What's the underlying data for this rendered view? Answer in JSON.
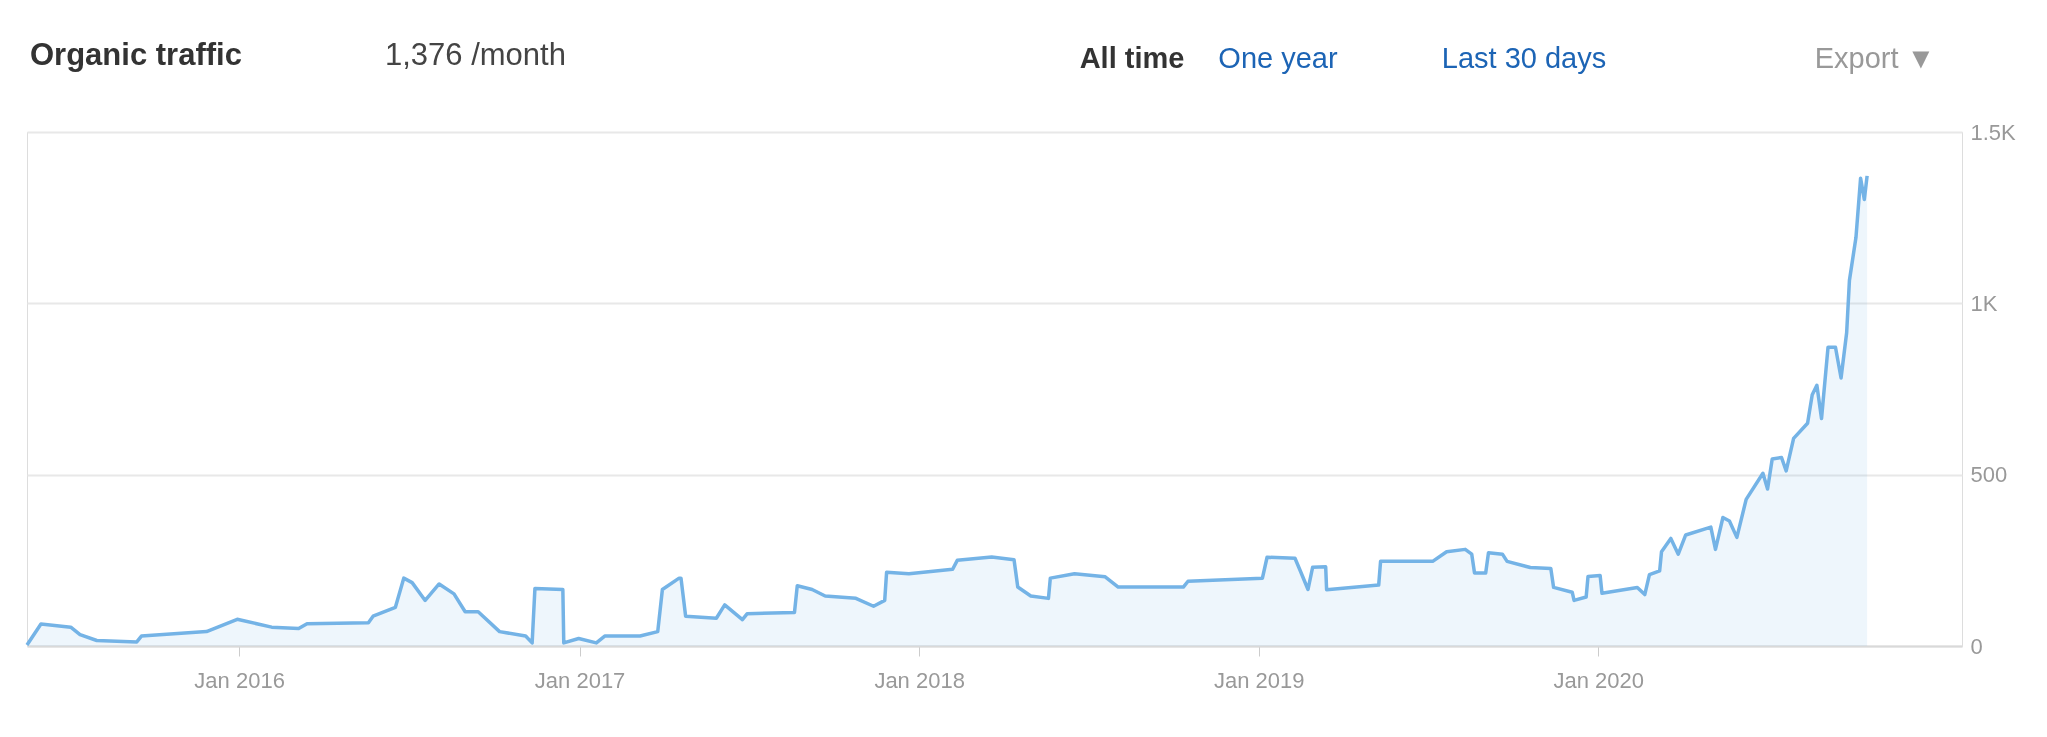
{
  "chart_data": {
    "type": "area",
    "title": "Organic traffic",
    "subtitle": "1,376 /month",
    "annotations": [
      "All time",
      "One year",
      "Last 30 days",
      "Export ▼"
    ],
    "x": [
      "2015-05-18",
      "2015-06-02",
      "2015-07-04",
      "2015-07-14",
      "2015-08-01",
      "2015-09-13",
      "2015-09-18",
      "2015-11-27",
      "2015-12-30",
      "2016-02-05",
      "2016-03-05",
      "2016-03-14",
      "2016-05-19",
      "2016-05-24",
      "2016-06-17",
      "2016-06-26",
      "2016-07-05",
      "2016-07-19",
      "2016-08-03",
      "2016-08-19",
      "2016-08-31",
      "2016-09-14",
      "2016-10-07",
      "2016-11-04",
      "2016-11-11",
      "2016-11-14",
      "2016-12-14",
      "2016-12-15",
      "2016-12-31",
      "2017-01-19",
      "2017-01-28",
      "2017-03-07",
      "2017-03-26",
      "2017-03-31",
      "2017-04-18",
      "2017-04-20",
      "2017-04-25",
      "2017-05-28",
      "2017-06-06",
      "2017-06-25",
      "2017-06-30",
      "2017-08-20",
      "2017-08-23",
      "2017-09-08",
      "2017-09-22",
      "2017-10-25",
      "2017-11-13",
      "2017-11-25",
      "2017-11-27",
      "2017-12-21",
      "2018-02-06",
      "2018-02-11",
      "2018-03-20",
      "2018-04-13",
      "2018-04-17",
      "2018-05-01",
      "2018-05-20",
      "2018-05-22",
      "2018-06-17",
      "2018-07-20",
      "2018-08-03",
      "2018-10-12",
      "2018-10-17",
      "2019-01-05",
      "2019-01-10",
      "2019-02-09",
      "2019-02-14",
      "2019-02-23",
      "2019-02-28",
      "2019-03-14",
      "2019-03-15",
      "2019-05-10",
      "2019-05-12",
      "2019-07-07",
      "2019-07-22",
      "2019-08-11",
      "2019-08-18",
      "2019-08-21",
      "2019-09-02",
      "2019-09-05",
      "2019-09-20",
      "2019-09-25",
      "2019-10-20",
      "2019-11-11",
      "2019-11-14",
      "2019-12-04",
      "2019-12-06",
      "2019-12-19",
      "2019-12-21",
      "2020-01-03",
      "2020-01-05",
      "2020-02-12",
      "2020-02-20",
      "2020-02-25",
      "2020-03-07",
      "2020-03-09",
      "2020-03-19",
      "2020-03-27",
      "2020-04-04",
      "2020-05-01",
      "2020-05-06",
      "2020-05-14",
      "2020-05-21",
      "2020-05-29",
      "2020-06-08",
      "2020-06-26",
      "2020-07-01",
      "2020-07-06",
      "2020-07-16",
      "2020-07-21",
      "2020-07-29",
      "2020-08-13",
      "2020-08-18",
      "2020-08-23",
      "2020-08-28",
      "2020-09-04",
      "2020-09-12",
      "2020-09-18",
      "2020-09-24",
      "2020-09-27",
      "2020-10-04",
      "2020-10-09",
      "2020-10-13",
      "2020-10-16"
    ],
    "series": [
      {
        "color": "#74b3e6",
        "values": [
          3,
          64,
          55,
          33,
          16,
          12,
          29,
          42,
          78,
          55,
          51,
          65,
          68,
          87,
          113,
          198,
          185,
          133,
          181,
          152,
          100,
          100,
          42,
          29,
          9,
          168,
          165,
          9,
          22,
          9,
          29,
          29,
          42,
          165,
          198,
          198,
          87,
          81,
          120,
          77,
          94,
          98,
          176,
          165,
          146,
          139,
          116,
          133,
          215,
          211,
          224,
          250,
          260,
          252,
          172,
          146,
          139,
          198,
          211,
          202,
          172,
          172,
          189,
          198,
          259,
          256,
          224,
          165,
          230,
          231,
          164,
          178,
          247,
          247,
          275,
          282,
          268,
          213,
          213,
          272,
          268,
          247,
          229,
          226,
          171,
          157,
          133,
          143,
          203,
          206,
          154,
          171,
          150,
          208,
          219,
          275,
          314,
          268,
          324,
          347,
          282,
          375,
          365,
          317,
          428,
          504,
          458,
          546,
          550,
          511,
          606,
          650,
          733,
          761,
          664,
          872,
          872,
          782,
          914,
          1067,
          1192,
          1365,
          1303,
          1372
        ]
      }
    ],
    "xlim": [
      "2015-05-18",
      "2021-01-26"
    ],
    "xticks": [
      {
        "value": "2016-01-01",
        "label": "Jan 2016"
      },
      {
        "value": "2017-01-01",
        "label": "Jan 2017"
      },
      {
        "value": "2018-01-01",
        "label": "Jan 2018"
      },
      {
        "value": "2019-01-01",
        "label": "Jan 2019"
      },
      {
        "value": "2020-01-01",
        "label": "Jan 2020"
      }
    ],
    "ylim": [
      0,
      1500
    ],
    "yticks": [
      0,
      500,
      {
        "value": 1000,
        "label": "1K"
      },
      {
        "value": 1500,
        "label": "1.5K"
      }
    ],
    "grid": "y"
  }
}
